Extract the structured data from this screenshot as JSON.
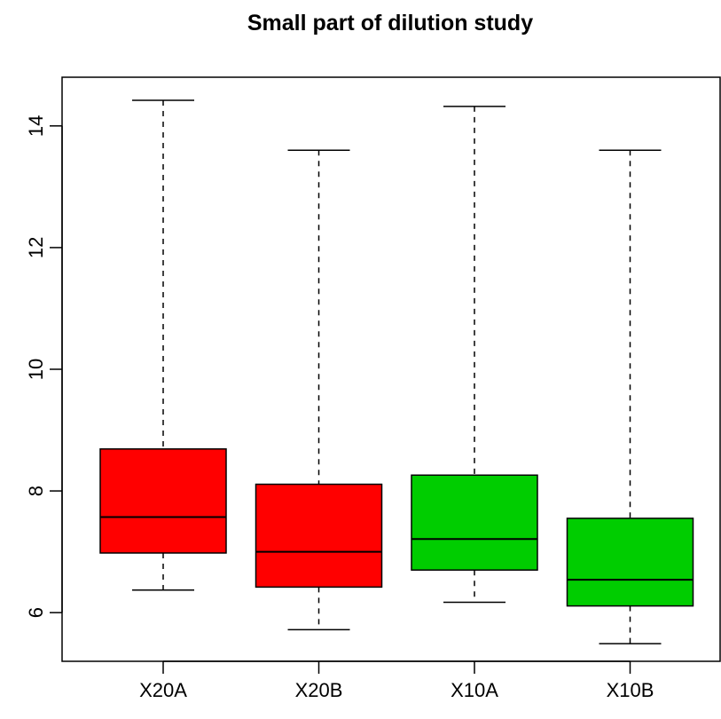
{
  "chart_data": {
    "type": "boxplot",
    "title": "Small part of dilution study",
    "xlabel": "",
    "ylabel": "",
    "categories": [
      "X20A",
      "X20B",
      "X10A",
      "X10B"
    ],
    "colors": [
      "#ff0000",
      "#ff0000",
      "#00cd00",
      "#00cd00"
    ],
    "boxes": [
      {
        "name": "X20A",
        "min": 6.37,
        "q1": 6.98,
        "median": 7.57,
        "q3": 8.69,
        "max": 14.42
      },
      {
        "name": "X20B",
        "min": 5.72,
        "q1": 6.42,
        "median": 7.0,
        "q3": 8.11,
        "max": 13.6
      },
      {
        "name": "X10A",
        "min": 6.17,
        "q1": 6.7,
        "median": 7.21,
        "q3": 8.26,
        "max": 14.32
      },
      {
        "name": "X10B",
        "min": 5.49,
        "q1": 6.11,
        "median": 6.54,
        "q3": 7.55,
        "max": 13.6
      }
    ],
    "yticks": [
      6,
      8,
      10,
      12,
      14
    ],
    "ylim": [
      5.2,
      14.8
    ],
    "grid": false,
    "whisker_style": "dashed"
  }
}
